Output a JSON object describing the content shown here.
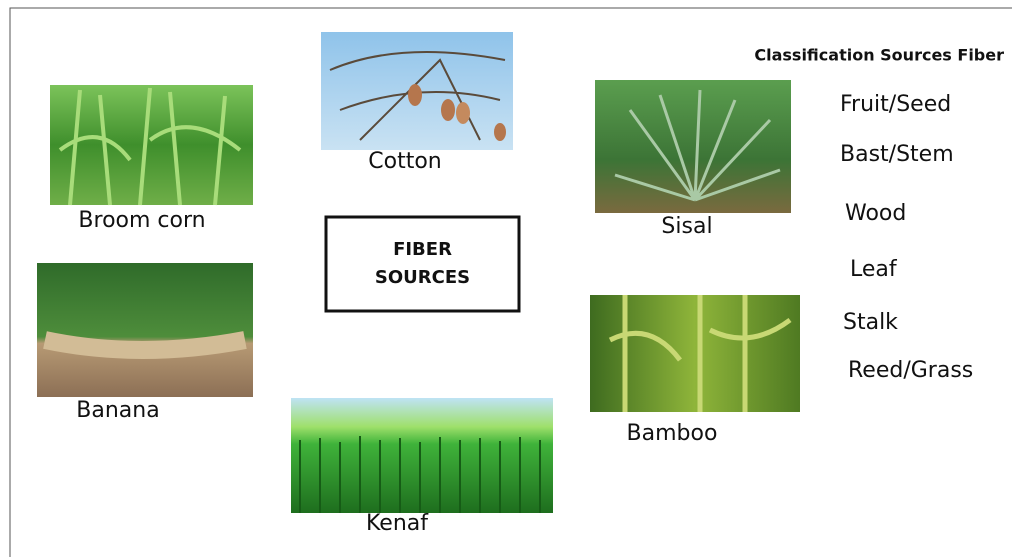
{
  "title": "FIBER SOURCES",
  "sources": [
    {
      "label": "Broom corn"
    },
    {
      "label": "Cotton"
    },
    {
      "label": "Banana"
    },
    {
      "label": "Kenaf"
    },
    {
      "label": "Sisal"
    },
    {
      "label": "Bamboo"
    }
  ],
  "classification": {
    "title": "Classification Sources Fiber",
    "items": [
      "Fruit/Seed",
      "Bast/Stem",
      "Wood",
      "Leaf",
      "Stalk",
      "Reed/Grass"
    ]
  }
}
